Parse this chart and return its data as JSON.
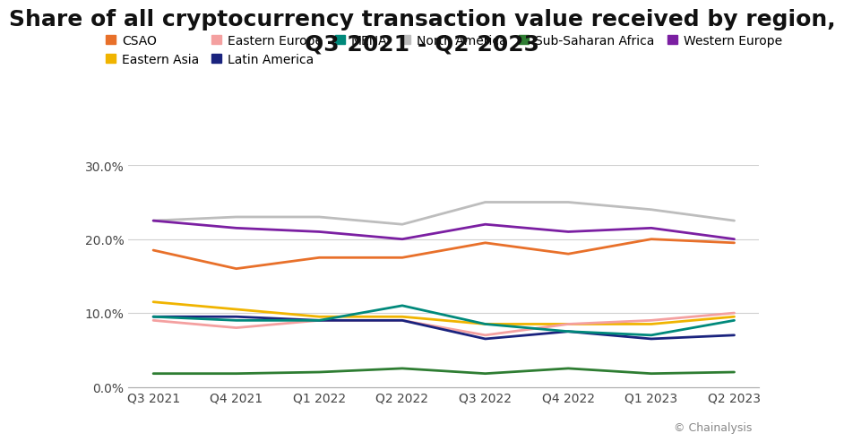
{
  "title": "Share of all cryptocurrency transaction value received by region,\nQ3 2021 - Q2 2023",
  "x_labels": [
    "Q3 2021",
    "Q4 2021",
    "Q1 2022",
    "Q2 2022",
    "Q3 2022",
    "Q4 2022",
    "Q1 2023",
    "Q2 2023"
  ],
  "series": {
    "CSAO": {
      "color": "#E8702A",
      "values": [
        18.5,
        16.0,
        17.5,
        17.5,
        19.5,
        18.0,
        20.0,
        19.5
      ]
    },
    "Eastern Asia": {
      "color": "#F0B400",
      "values": [
        11.5,
        10.5,
        9.5,
        9.5,
        8.5,
        8.5,
        8.5,
        9.5
      ]
    },
    "Eastern Europe": {
      "color": "#F4A0A0",
      "values": [
        9.0,
        8.0,
        9.0,
        9.0,
        7.0,
        8.5,
        9.0,
        10.0
      ]
    },
    "Latin America": {
      "color": "#1A237E",
      "values": [
        9.5,
        9.5,
        9.0,
        9.0,
        6.5,
        7.5,
        6.5,
        7.0
      ]
    },
    "MENA": {
      "color": "#00897B",
      "values": [
        9.5,
        9.0,
        9.0,
        11.0,
        8.5,
        7.5,
        7.0,
        9.0
      ]
    },
    "North America": {
      "color": "#BDBDBD",
      "values": [
        22.5,
        23.0,
        23.0,
        22.0,
        25.0,
        25.0,
        24.0,
        22.5
      ]
    },
    "Sub-Saharan Africa": {
      "color": "#2E7D32",
      "values": [
        1.8,
        1.8,
        2.0,
        2.5,
        1.8,
        2.5,
        1.8,
        2.0
      ]
    },
    "Western Europe": {
      "color": "#7B1FA2",
      "values": [
        22.5,
        21.5,
        21.0,
        20.0,
        22.0,
        21.0,
        21.5,
        20.0
      ]
    }
  },
  "ylim": [
    0,
    30
  ],
  "yticks": [
    0,
    10,
    20,
    30
  ],
  "ytick_labels": [
    "0.0%",
    "10.0%",
    "20.0%",
    "30.0%"
  ],
  "background_color": "#ffffff",
  "grid_color": "#d0d0d0",
  "copyright_text": "© Chainalysis",
  "title_fontsize": 18,
  "legend_fontsize": 10,
  "tick_fontsize": 10
}
